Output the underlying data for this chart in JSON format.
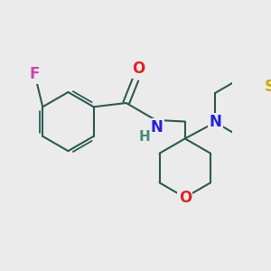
{
  "background_color": "#ebebeb",
  "bond_color": "#2d5a4e",
  "atom_colors": {
    "F": "#cc44aa",
    "O_carbonyl": "#dd2222",
    "N": "#2222dd",
    "H": "#4a8a7a",
    "S": "#ccaa00",
    "O_ring": "#dd2222"
  },
  "font_size_atoms": 11,
  "line_width": 1.5
}
